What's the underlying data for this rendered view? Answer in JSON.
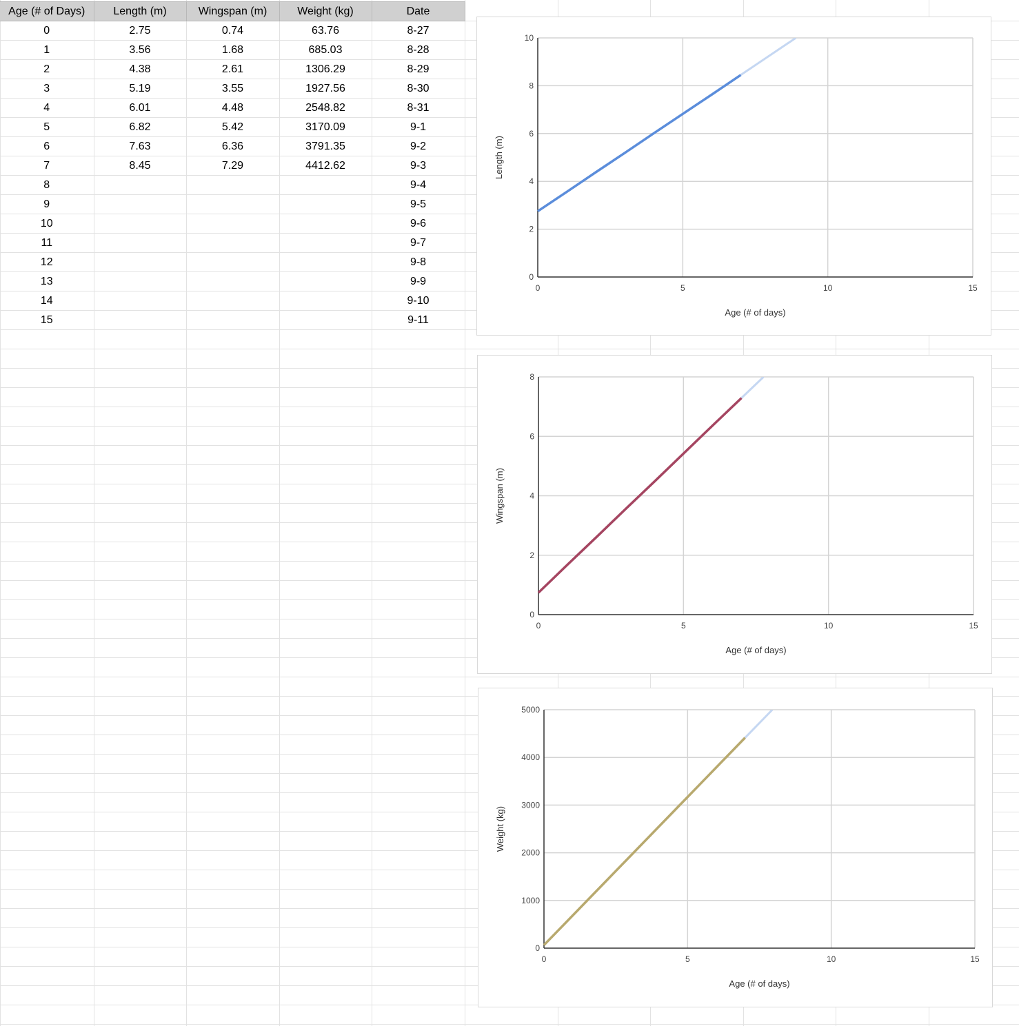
{
  "sheet": {
    "headers": [
      "Age (# of Days)",
      "Length (m)",
      "Wingspan (m)",
      "Weight (kg)",
      "Date"
    ],
    "rows": [
      [
        "0",
        "2.75",
        "0.74",
        "63.76",
        "8-27"
      ],
      [
        "1",
        "3.56",
        "1.68",
        "685.03",
        "8-28"
      ],
      [
        "2",
        "4.38",
        "2.61",
        "1306.29",
        "8-29"
      ],
      [
        "3",
        "5.19",
        "3.55",
        "1927.56",
        "8-30"
      ],
      [
        "4",
        "6.01",
        "4.48",
        "2548.82",
        "8-31"
      ],
      [
        "5",
        "6.82",
        "5.42",
        "3170.09",
        "9-1"
      ],
      [
        "6",
        "7.63",
        "6.36",
        "3791.35",
        "9-2"
      ],
      [
        "7",
        "8.45",
        "7.29",
        "4412.62",
        "9-3"
      ],
      [
        "8",
        "",
        "",
        "",
        "9-4"
      ],
      [
        "9",
        "",
        "",
        "",
        "9-5"
      ],
      [
        "10",
        "",
        "",
        "",
        "9-6"
      ],
      [
        "11",
        "",
        "",
        "",
        "9-7"
      ],
      [
        "12",
        "",
        "",
        "",
        "9-8"
      ],
      [
        "13",
        "",
        "",
        "",
        "9-9"
      ],
      [
        "14",
        "",
        "",
        "",
        "9-10"
      ],
      [
        "15",
        "",
        "",
        "",
        "9-11"
      ]
    ]
  },
  "chart_data": [
    {
      "type": "line",
      "title": "",
      "xlabel": "Age (# of days)",
      "ylabel": "Length (m)",
      "xlim": [
        0,
        15
      ],
      "ylim": [
        0,
        10
      ],
      "xticks": [
        0,
        5,
        10,
        15
      ],
      "yticks": [
        0,
        2,
        4,
        6,
        8,
        10
      ],
      "grid": true,
      "series": [
        {
          "color": "#5b8ddb",
          "x": [
            0,
            1,
            2,
            3,
            4,
            5,
            6,
            7
          ],
          "y": [
            2.75,
            3.56,
            4.38,
            5.19,
            6.01,
            6.82,
            7.63,
            8.45
          ]
        }
      ],
      "trend_color": "#c5d7f2",
      "trend": {
        "x": [
          7,
          8.9
        ],
        "y": [
          8.45,
          10
        ]
      }
    },
    {
      "type": "line",
      "title": "",
      "xlabel": "Age (# of days)",
      "ylabel": "Wingspan (m)",
      "xlim": [
        0,
        15
      ],
      "ylim": [
        0,
        8
      ],
      "xticks": [
        0,
        5,
        10,
        15
      ],
      "yticks": [
        0,
        2,
        4,
        6,
        8
      ],
      "grid": true,
      "series": [
        {
          "color": "#a54561",
          "x": [
            0,
            1,
            2,
            3,
            4,
            5,
            6,
            7
          ],
          "y": [
            0.74,
            1.68,
            2.61,
            3.55,
            4.48,
            5.42,
            6.36,
            7.29
          ]
        }
      ],
      "trend_color": "#c5d7f2",
      "trend": {
        "x": [
          7,
          7.76
        ],
        "y": [
          7.29,
          8
        ]
      }
    },
    {
      "type": "line",
      "title": "",
      "xlabel": "Age (# of days)",
      "ylabel": "Weight (kg)",
      "xlim": [
        0,
        15
      ],
      "ylim": [
        0,
        5000
      ],
      "xticks": [
        0,
        5,
        10,
        15
      ],
      "yticks": [
        0,
        1000,
        2000,
        3000,
        4000,
        5000
      ],
      "grid": true,
      "series": [
        {
          "color": "#b8a96e",
          "x": [
            0,
            1,
            2,
            3,
            4,
            5,
            6,
            7
          ],
          "y": [
            63.76,
            685.03,
            1306.29,
            1927.56,
            2548.82,
            3170.09,
            3791.35,
            4412.62
          ]
        }
      ],
      "trend_color": "#c5d7f2",
      "trend": {
        "x": [
          7,
          7.95
        ],
        "y": [
          4412.62,
          5000
        ]
      }
    }
  ]
}
